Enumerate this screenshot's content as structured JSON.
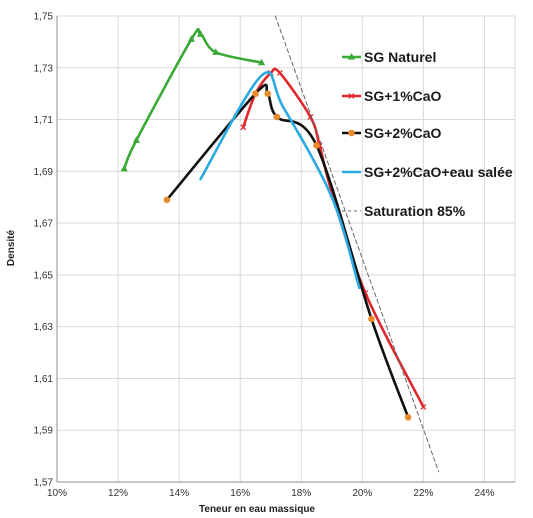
{
  "chart_data": {
    "type": "line",
    "xlabel": "Teneur en eau massique",
    "ylabel": "Densité",
    "xlim": [
      0.1,
      0.25
    ],
    "ylim": [
      1.57,
      1.75
    ],
    "x_ticks": [
      0.1,
      0.12,
      0.14,
      0.16,
      0.18,
      0.2,
      0.22,
      0.24
    ],
    "x_tick_labels": [
      "10%",
      "12%",
      "14%",
      "16%",
      "18%",
      "20%",
      "22%",
      "24%"
    ],
    "y_ticks": [
      1.57,
      1.59,
      1.61,
      1.63,
      1.65,
      1.67,
      1.69,
      1.71,
      1.73,
      1.75
    ],
    "y_tick_labels": [
      "1,57",
      "1,59",
      "1,61",
      "1,63",
      "1,65",
      "1,67",
      "1,69",
      "1,71",
      "1,73",
      "1,75"
    ],
    "grid": true,
    "legend_position": "right",
    "series": [
      {
        "name": "SG Naturel",
        "color": "#3aaa35",
        "marker": "triangle",
        "points": [
          [
            0.122,
            1.691
          ],
          [
            0.126,
            1.702
          ],
          [
            0.144,
            1.741
          ],
          [
            0.147,
            1.743
          ],
          [
            0.152,
            1.736
          ],
          [
            0.167,
            1.732
          ]
        ]
      },
      {
        "name": "SG+1%CaO",
        "color": "#e0262b",
        "marker": "cross",
        "points": [
          [
            0.161,
            1.707
          ],
          [
            0.165,
            1.72
          ],
          [
            0.17,
            1.728
          ],
          [
            0.173,
            1.728
          ],
          [
            0.183,
            1.711
          ],
          [
            0.186,
            1.7
          ],
          [
            0.19,
            1.682
          ],
          [
            0.201,
            1.643
          ],
          [
            0.22,
            1.599
          ]
        ]
      },
      {
        "name": "SG+2%CaO",
        "color": "#111111",
        "marker": "circle",
        "marker_color": "#e8892b",
        "points": [
          [
            0.136,
            1.679
          ],
          [
            0.165,
            1.72
          ],
          [
            0.169,
            1.72
          ],
          [
            0.172,
            1.711
          ],
          [
            0.185,
            1.7
          ],
          [
            0.203,
            1.633
          ],
          [
            0.215,
            1.595
          ]
        ]
      },
      {
        "name": "SG+2%CaO+eau salée",
        "color": "#29abe2",
        "marker": "none",
        "points": [
          [
            0.147,
            1.687
          ],
          [
            0.167,
            1.727
          ],
          [
            0.174,
            1.715
          ],
          [
            0.19,
            1.68
          ],
          [
            0.199,
            1.645
          ]
        ]
      },
      {
        "name": "Saturation 85%",
        "color": "#666666",
        "dashed": true,
        "marker": "none",
        "points": [
          [
            0.1715,
            1.75
          ],
          [
            0.225,
            1.574
          ]
        ]
      }
    ]
  }
}
